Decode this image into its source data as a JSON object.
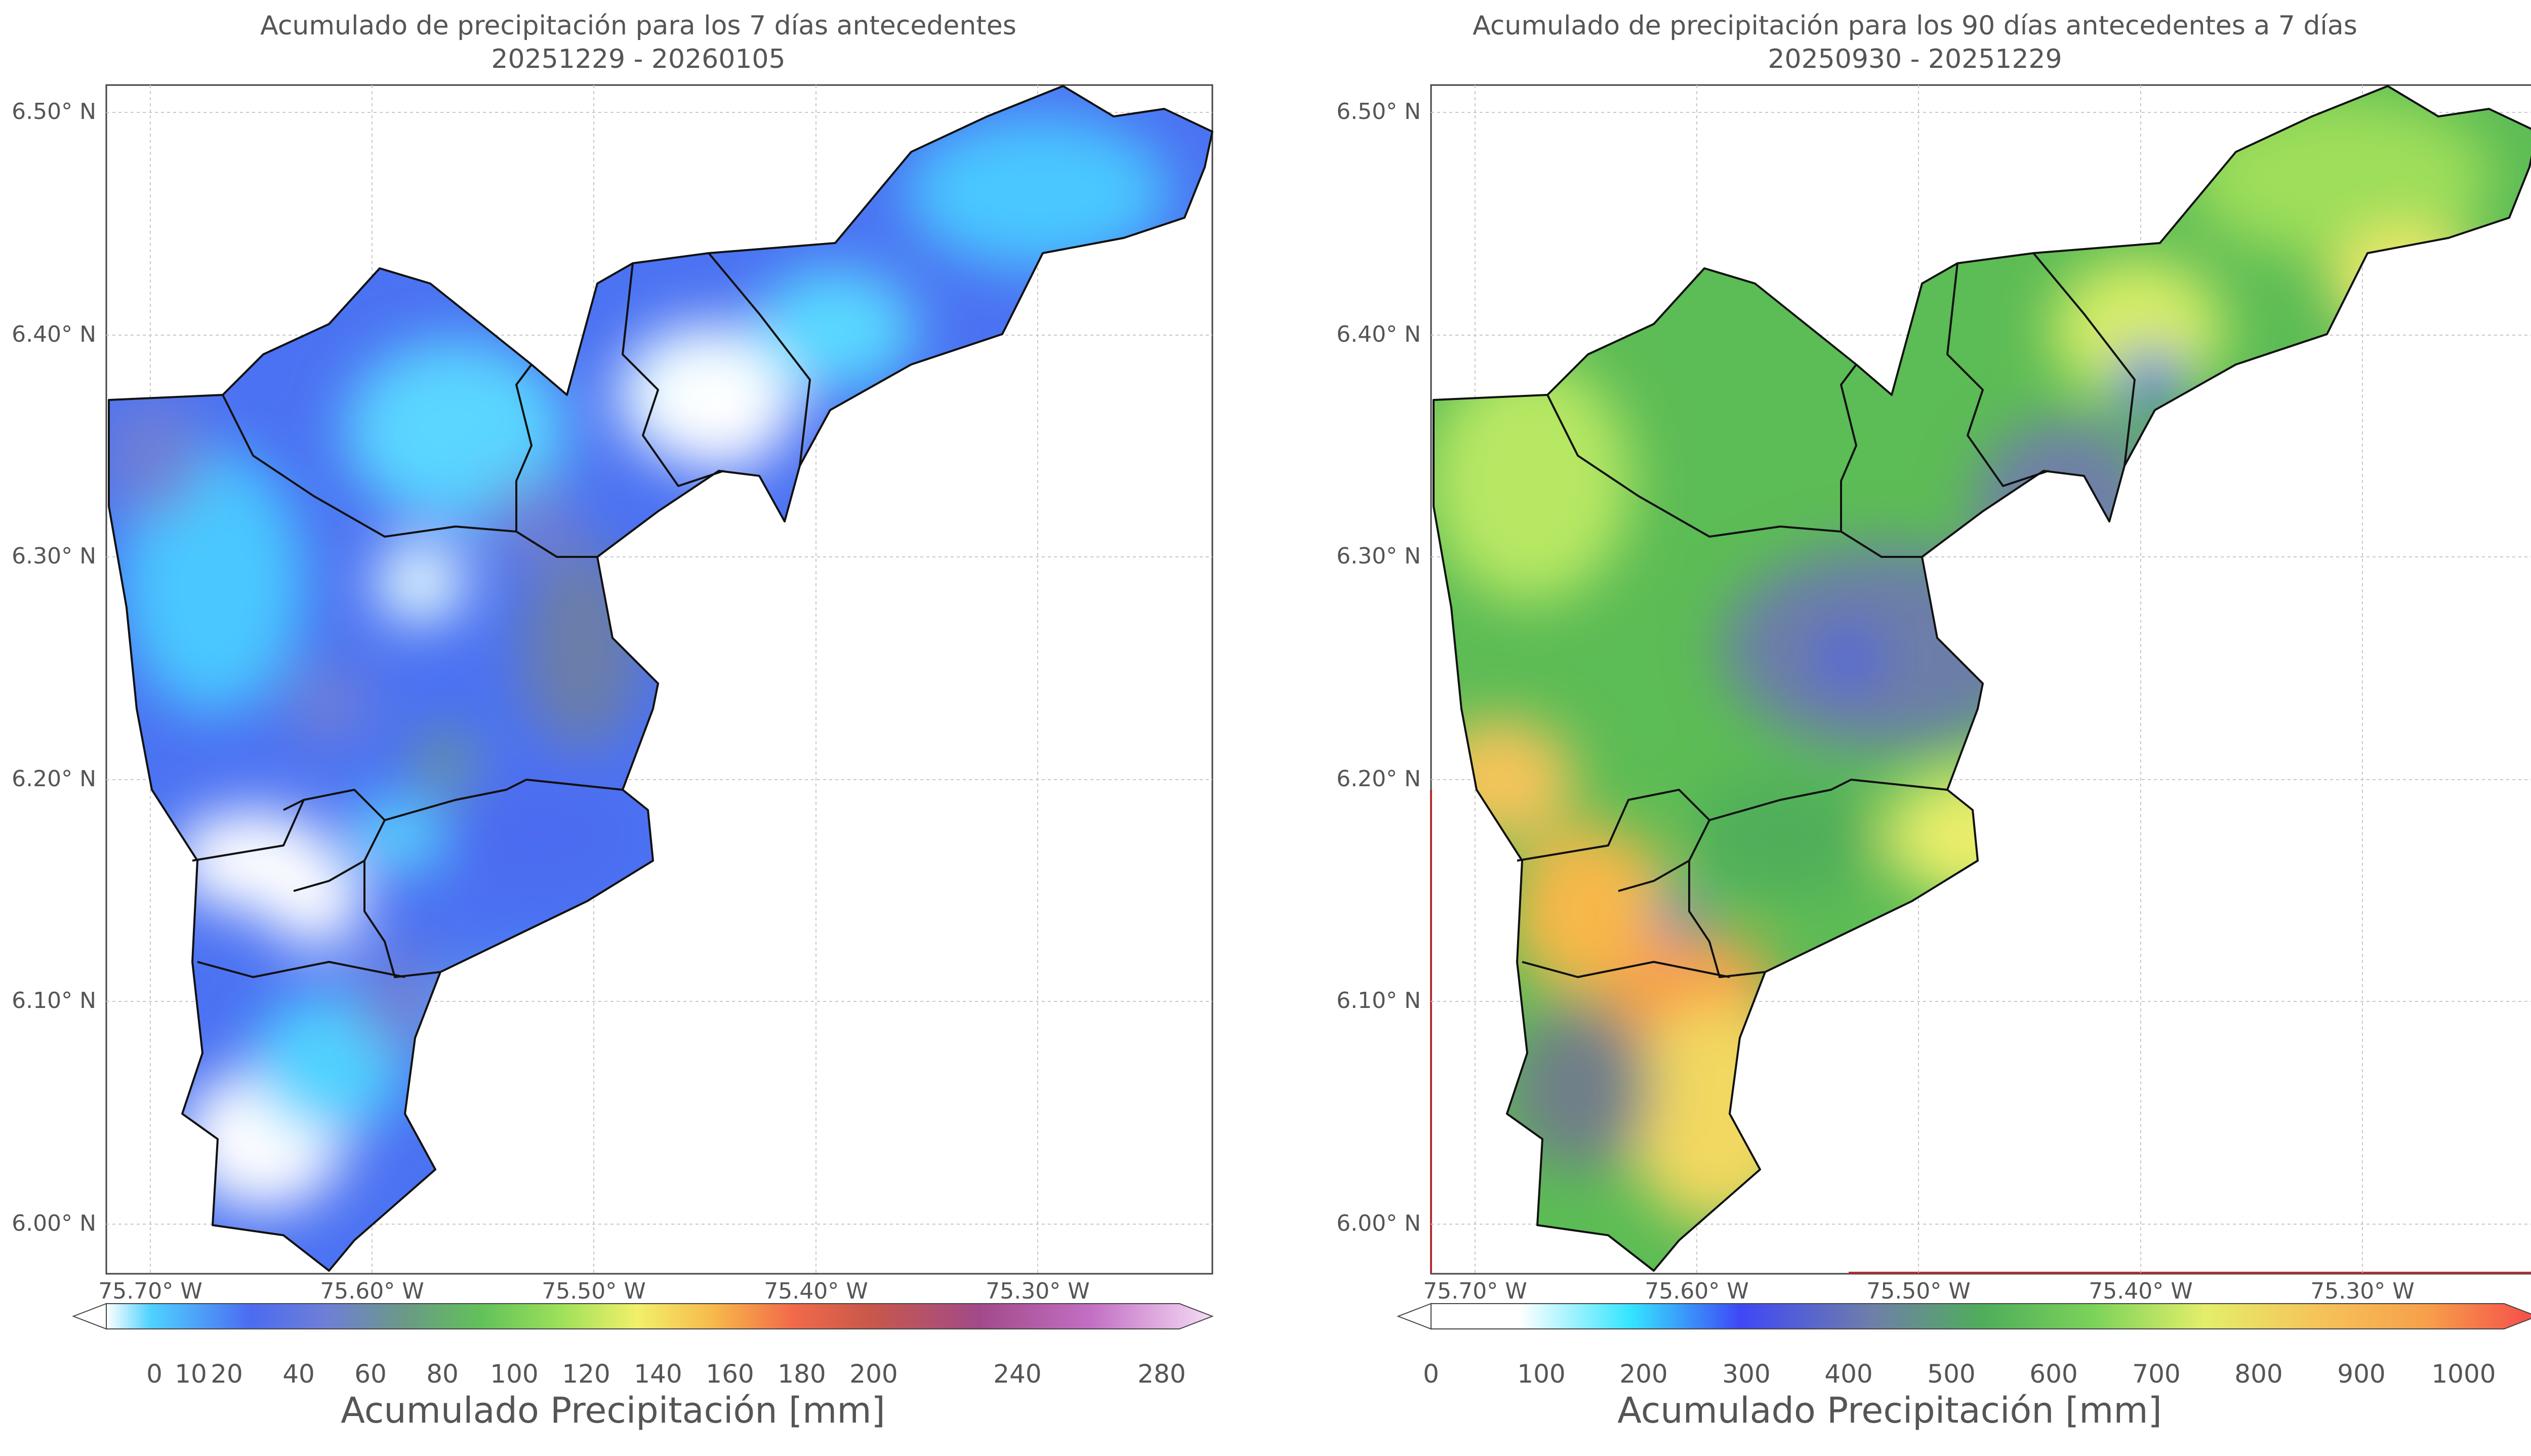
{
  "panels": [
    {
      "title_line1": "Acumulado de precipitación para los 7 días antecedentes",
      "title_line2": "20251229 - 20260105",
      "lat_ticks": [
        "6.50° N",
        "6.40° N",
        "6.30° N",
        "6.20° N",
        "6.10° N",
        "6.00° N"
      ],
      "lon_ticks": [
        "75.70° W",
        "75.60° W",
        "75.50° W",
        "75.40° W",
        "75.30° W"
      ],
      "colorbar_ticks": [
        "0",
        "10",
        "20",
        "40",
        "60",
        "80",
        "100",
        "120",
        "140",
        "160",
        "180",
        "200",
        "240",
        "280"
      ],
      "colorbar_label": "Acumulado Precipitación [mm]",
      "colors": [
        "#ffffff",
        "#4fd2ff",
        "#4b6cf0",
        "#6f7fd6",
        "#6a9a86",
        "#62c25a",
        "#9de05a",
        "#f2f06a",
        "#f7b84a",
        "#f26a4a",
        "#c8584a",
        "#a24a8a",
        "#c36fc4",
        "#f5dcf5"
      ]
    },
    {
      "title_line1": "Acumulado de precipitación para los 90 días antecedentes a 7 días",
      "title_line2": "20250930 - 20251229",
      "lat_ticks": [
        "6.50° N",
        "6.40° N",
        "6.30° N",
        "6.20° N",
        "6.10° N",
        "6.00° N"
      ],
      "lon_ticks": [
        "75.70° W",
        "75.60° W",
        "75.50° W",
        "75.40° W",
        "75.30° W"
      ],
      "colorbar_ticks": [
        "0",
        "100",
        "200",
        "300",
        "400",
        "500",
        "600",
        "700",
        "800",
        "900",
        "1000"
      ],
      "colorbar_label": "Acumulado Precipitación [mm]",
      "colors": [
        "#ffffff",
        "#ffffff",
        "#35e5ff",
        "#3f48f5",
        "#6f7fa8",
        "#4fae5a",
        "#7cd35a",
        "#e4ee6a",
        "#f5c45a",
        "#f7a04a",
        "#f54a4a"
      ]
    }
  ]
}
